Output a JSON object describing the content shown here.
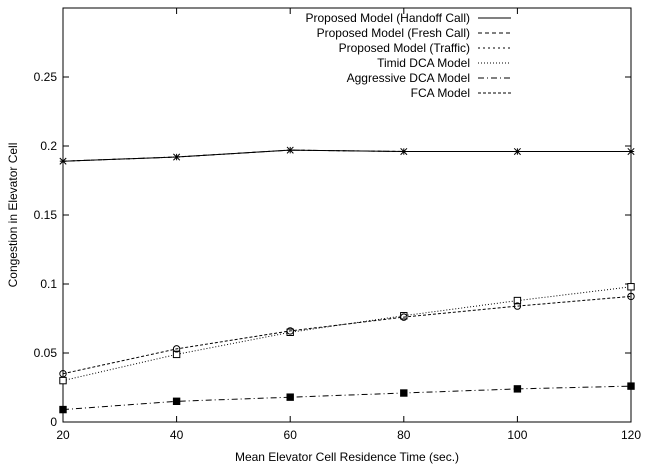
{
  "chart_data": {
    "type": "line",
    "title": "",
    "xlabel": "Mean Elevator Cell Residence Time (sec.)",
    "ylabel": "Congestion in Elevator Cell",
    "xlim": [
      20,
      120
    ],
    "ylim": [
      0,
      0.3
    ],
    "xticks": [
      20,
      40,
      60,
      80,
      100,
      120
    ],
    "xtick_labels": [
      "20",
      "40",
      "60",
      "80",
      "100",
      "120"
    ],
    "yticks": [
      0,
      0.05,
      0.1,
      0.15,
      0.2,
      0.25
    ],
    "ytick_labels": [
      "0",
      "0.05",
      "0.1",
      "0.15",
      "0.2",
      "0.25"
    ],
    "grid": false,
    "legend_position": "top-right",
    "x": [
      20,
      40,
      60,
      80,
      100,
      120
    ],
    "series": [
      {
        "name": "Proposed Model (Handoff Call)",
        "values": [
          0.189,
          0.192,
          0.197,
          0.196,
          0.196,
          0.196
        ],
        "dash": "solid",
        "marker": "star"
      },
      {
        "name": "Proposed Model (Fresh Call)",
        "values": [
          0.189,
          0.192,
          0.197,
          0.196,
          0.196,
          0.196
        ],
        "dash": "dashed",
        "marker": "none"
      },
      {
        "name": "Proposed Model (Traffic)",
        "values": [
          0.189,
          0.192,
          0.197,
          0.196,
          0.196,
          0.196
        ],
        "dash": "dotted",
        "marker": "none"
      },
      {
        "name": "Timid DCA Model",
        "values": [
          0.03,
          0.049,
          0.065,
          0.077,
          0.088,
          0.098
        ],
        "dash": "fine-dotted",
        "marker": "square-open"
      },
      {
        "name": "Aggressive DCA Model",
        "values": [
          0.009,
          0.015,
          0.018,
          0.021,
          0.024,
          0.026
        ],
        "dash": "dash-dot",
        "marker": "square-filled"
      },
      {
        "name": "FCA Model",
        "values": [
          0.035,
          0.053,
          0.066,
          0.076,
          0.084,
          0.091
        ],
        "dash": "short-dash",
        "marker": "circle-open"
      }
    ]
  }
}
